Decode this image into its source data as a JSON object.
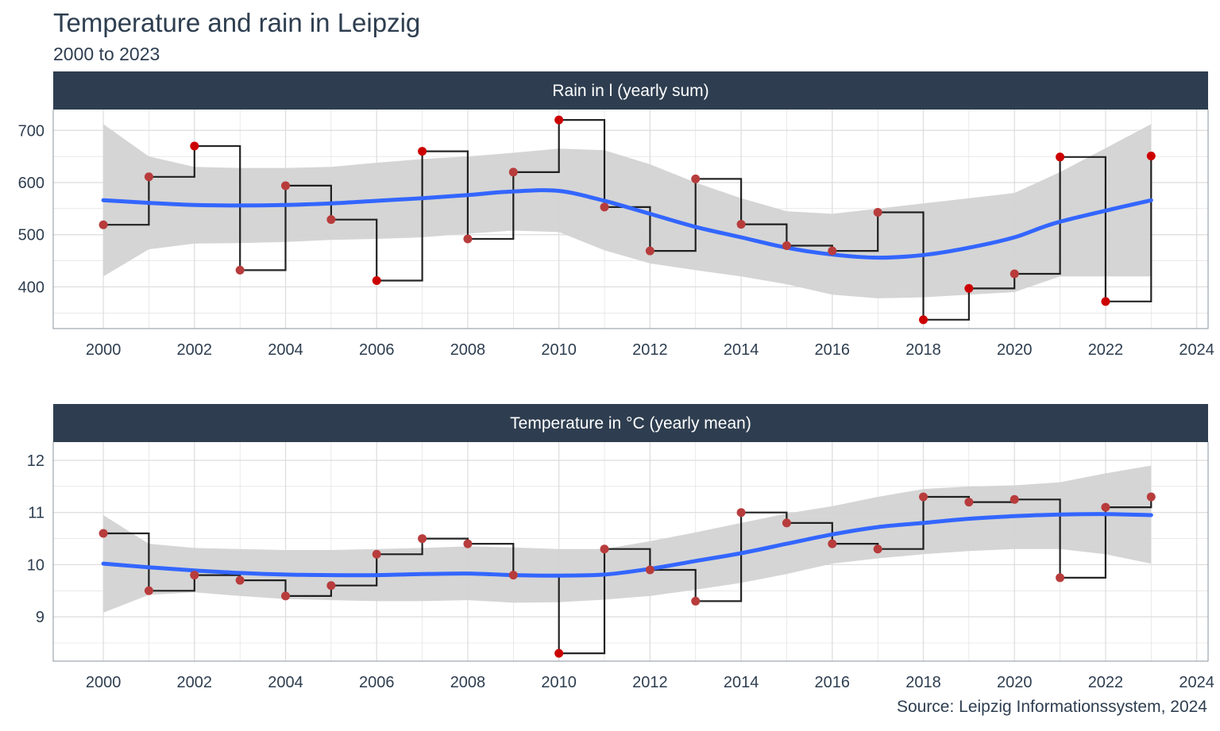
{
  "title": "Temperature and rain in Leipzig",
  "subtitle": "2000 to 2023",
  "caption": "Source: Leipzig Informationssystem, 2024",
  "colors": {
    "strip": "#2e3e50",
    "smooth": "#3366ff",
    "band": "#d3d3d3",
    "step": "#000000",
    "point_strong": "#cc0000",
    "point_mild": "#b83c3c",
    "grid": "#dcdcdc",
    "axis_text": "#2e3e50"
  },
  "chart_data": [
    {
      "type": "line",
      "panel": "Rain in l (yearly sum)",
      "x": [
        2000,
        2001,
        2002,
        2003,
        2004,
        2005,
        2006,
        2007,
        2008,
        2009,
        2010,
        2011,
        2012,
        2013,
        2014,
        2015,
        2016,
        2017,
        2018,
        2019,
        2020,
        2021,
        2022,
        2023
      ],
      "y": [
        519,
        611,
        670,
        432,
        594,
        529,
        412,
        660,
        492,
        620,
        720,
        553,
        469,
        607,
        520,
        479,
        469,
        543,
        337,
        397,
        425,
        649,
        372,
        651
      ],
      "smooth": [
        566,
        561,
        557,
        556,
        557,
        560,
        565,
        570,
        576,
        583,
        584,
        565,
        540,
        515,
        495,
        475,
        462,
        456,
        461,
        475,
        495,
        525,
        566
      ],
      "smooth_x": [
        2000,
        2001,
        2002,
        2003,
        2004,
        2005,
        2006,
        2007,
        2008,
        2009,
        2010,
        2011,
        2012,
        2013,
        2014,
        2015,
        2016,
        2017,
        2018,
        2019,
        2020,
        2021,
        2023
      ],
      "band_upper": [
        712,
        650,
        630,
        628,
        628,
        630,
        638,
        645,
        650,
        657,
        665,
        662,
        635,
        600,
        570,
        545,
        540,
        550,
        560,
        570,
        580,
        620,
        712
      ],
      "band_lower": [
        420,
        472,
        483,
        484,
        486,
        490,
        492,
        495,
        502,
        508,
        505,
        470,
        445,
        432,
        420,
        405,
        385,
        378,
        380,
        385,
        390,
        420,
        420
      ],
      "x_ticks": [
        2000,
        2002,
        2004,
        2006,
        2008,
        2010,
        2012,
        2014,
        2016,
        2018,
        2020,
        2022,
        2024
      ],
      "y_ticks": [
        400,
        500,
        600,
        700
      ],
      "xlim": [
        1998.9,
        2024.25
      ],
      "ylim": [
        320,
        740
      ]
    },
    {
      "type": "line",
      "panel": "Temperature in °C (yearly mean)",
      "x": [
        2000,
        2001,
        2002,
        2003,
        2004,
        2005,
        2006,
        2007,
        2008,
        2009,
        2010,
        2011,
        2012,
        2013,
        2014,
        2015,
        2016,
        2017,
        2018,
        2019,
        2020,
        2021,
        2022,
        2023
      ],
      "y": [
        10.6,
        9.5,
        9.8,
        9.7,
        9.4,
        9.6,
        10.2,
        10.5,
        10.4,
        9.8,
        8.3,
        10.3,
        9.9,
        9.3,
        11.0,
        10.8,
        10.4,
        10.3,
        11.3,
        11.2,
        11.25,
        9.75,
        11.1,
        11.3
      ],
      "smooth": [
        10.02,
        9.95,
        9.89,
        9.84,
        9.81,
        9.8,
        9.8,
        9.82,
        9.83,
        9.8,
        9.79,
        9.81,
        9.92,
        10.07,
        10.22,
        10.4,
        10.58,
        10.72,
        10.8,
        10.88,
        10.93,
        10.96,
        10.97,
        10.95
      ],
      "smooth_x": [
        2000,
        2001,
        2002,
        2003,
        2004,
        2005,
        2006,
        2007,
        2008,
        2009,
        2010,
        2011,
        2012,
        2013,
        2014,
        2015,
        2016,
        2017,
        2018,
        2019,
        2020,
        2021,
        2022,
        2023
      ],
      "band_upper": [
        10.95,
        10.4,
        10.32,
        10.3,
        10.28,
        10.28,
        10.3,
        10.32,
        10.35,
        10.33,
        10.3,
        10.3,
        10.45,
        10.62,
        10.8,
        10.98,
        11.12,
        11.3,
        11.45,
        11.5,
        11.52,
        11.58,
        11.75,
        11.9
      ],
      "band_lower": [
        9.08,
        9.42,
        9.47,
        9.4,
        9.34,
        9.32,
        9.3,
        9.3,
        9.32,
        9.27,
        9.28,
        9.33,
        9.4,
        9.52,
        9.65,
        9.82,
        10.02,
        10.12,
        10.2,
        10.26,
        10.3,
        10.3,
        10.2,
        10.02
      ],
      "x_ticks": [
        2000,
        2002,
        2004,
        2006,
        2008,
        2010,
        2012,
        2014,
        2016,
        2018,
        2020,
        2022,
        2024
      ],
      "y_ticks": [
        9,
        10,
        11,
        12
      ],
      "xlim": [
        1998.9,
        2024.25
      ],
      "ylim": [
        8.15,
        12.35
      ]
    }
  ]
}
